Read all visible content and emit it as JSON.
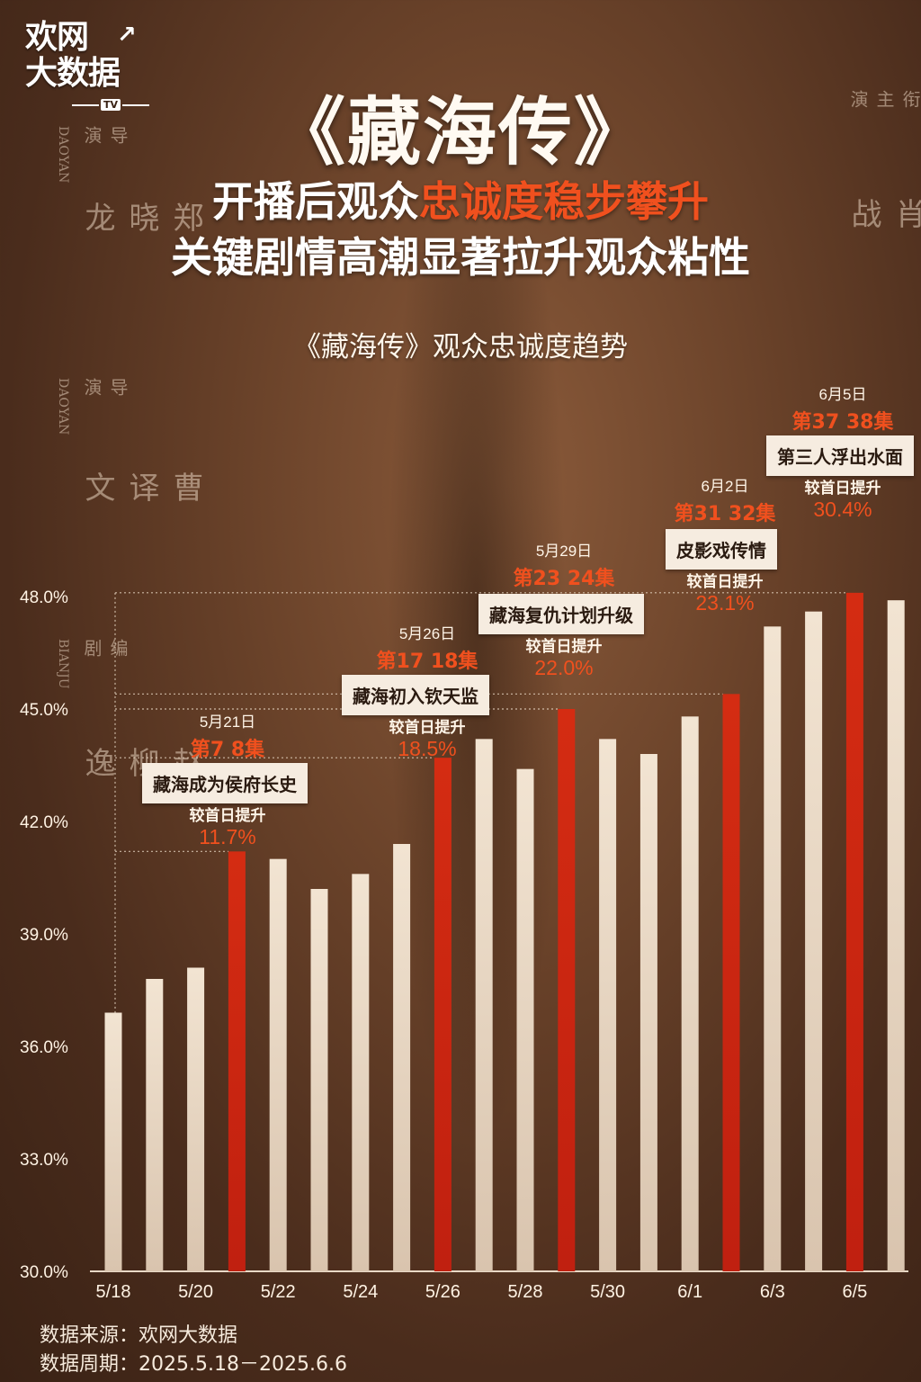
{
  "logo": {
    "line1": "欢网",
    "line2": "大数据",
    "tv": "TV",
    "mark": "↗"
  },
  "poster_credits": {
    "left": [
      {
        "role": "导演",
        "name": "郑晓龙",
        "en": "DAOYAN"
      },
      {
        "role": "导演",
        "name": "曹译文",
        "en": "DAOYAN"
      },
      {
        "role": "编剧",
        "name": "赵柳逸",
        "en": "BIANJU"
      }
    ],
    "right": {
      "role": "领衔主演",
      "name": "肖战"
    }
  },
  "headline": {
    "title": "《藏海传》",
    "line1_prefix": "开播后观众",
    "line1_highlight": "忠诚度稳步攀升",
    "line2": "关键剧情高潮显著拉升观众粘性",
    "chart_title": "《藏海传》观众忠诚度趋势"
  },
  "colors": {
    "highlight_bar": "#d42c12",
    "normal_bar": "#f2e4d2",
    "accent_text": "#f0501e"
  },
  "chart_data": {
    "type": "bar",
    "title": "《藏海传》观众忠诚度趋势",
    "categories": [
      "5/18",
      "5/19",
      "5/20",
      "5/21",
      "5/22",
      "5/23",
      "5/24",
      "5/25",
      "5/26",
      "5/27",
      "5/28",
      "5/29",
      "5/30",
      "5/31",
      "6/1",
      "6/2",
      "6/3",
      "6/4",
      "6/5",
      "6/6"
    ],
    "x_tick_labels": [
      "5/18",
      "5/20",
      "5/22",
      "5/24",
      "5/26",
      "5/28",
      "5/30",
      "6/1",
      "6/3",
      "6/5"
    ],
    "values": [
      36.9,
      37.8,
      38.1,
      41.2,
      41.0,
      40.2,
      40.6,
      41.4,
      43.7,
      44.2,
      43.4,
      45.0,
      44.2,
      43.8,
      44.8,
      45.4,
      47.2,
      47.6,
      48.1,
      47.9
    ],
    "highlighted": [
      3,
      8,
      11,
      15,
      18
    ],
    "ylim": [
      30.0,
      48.0
    ],
    "y_ticks": [
      "30.0%",
      "33.0%",
      "36.0%",
      "39.0%",
      "42.0%",
      "45.0%",
      "48.0%"
    ],
    "y_tick_values": [
      30,
      33,
      36,
      39,
      42,
      45,
      48
    ],
    "annotations": [
      {
        "date": "5月21日",
        "episodes": "第7 8集",
        "plot": "藏海成为侯府长史",
        "delta_label": "较首日提升",
        "delta": "11.7%"
      },
      {
        "date": "5月26日",
        "episodes": "第17 18集",
        "plot": "藏海初入钦天监",
        "delta_label": "较首日提升",
        "delta": "18.5%"
      },
      {
        "date": "5月29日",
        "episodes": "第23 24集",
        "plot": "藏海复仇计划升级",
        "delta_label": "较首日提升",
        "delta": "22.0%"
      },
      {
        "date": "6月2日",
        "episodes": "第31 32集",
        "plot": "皮影戏传情",
        "delta_label": "较首日提升",
        "delta": "23.1%"
      },
      {
        "date": "6月5日",
        "episodes": "第37 38集",
        "plot": "第三人浮出水面",
        "delta_label": "较首日提升",
        "delta": "30.4%"
      }
    ],
    "grid": false
  },
  "footer": {
    "source": "数据来源：欢网大数据",
    "period": "数据周期：2025.5.18－2025.6.6"
  }
}
